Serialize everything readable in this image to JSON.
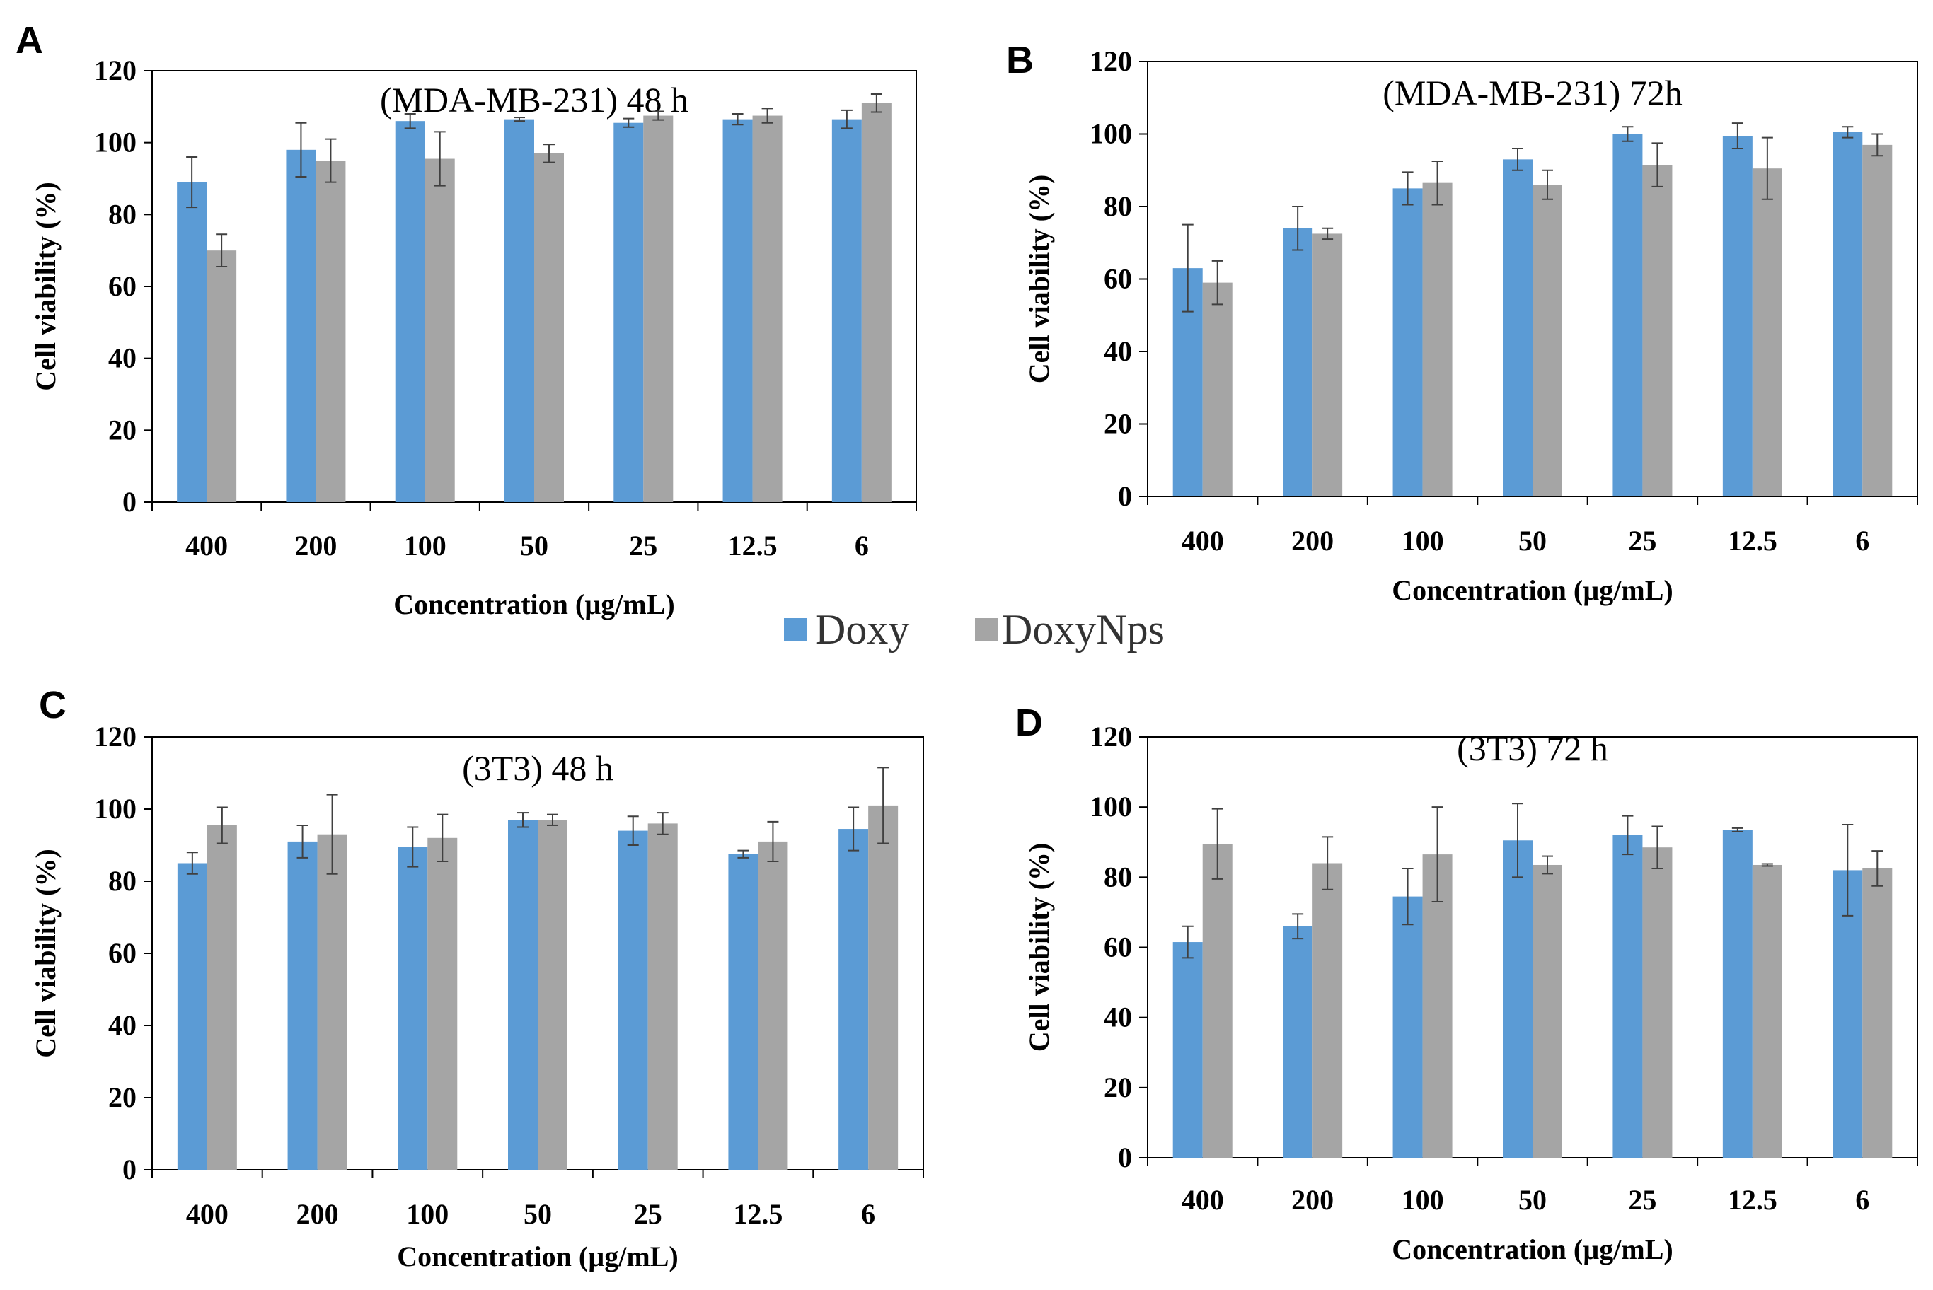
{
  "legend": {
    "series1": "Doxy",
    "series2": "DoxyNps"
  },
  "colors": {
    "doxy": "#5b9bd5",
    "doxynps": "#a5a5a5",
    "axis": "#000000",
    "errorbar": "#404040"
  },
  "chart_data": [
    {
      "panel": "A",
      "type": "bar",
      "title": "(MDA-MB-231) 48 h",
      "xlabel": "Concentration (µg/mL)",
      "ylabel": "Cell viability (%)",
      "ylim": [
        0,
        120
      ],
      "yticks": [
        "0",
        "20",
        "40",
        "60",
        "80",
        "100",
        "120"
      ],
      "categories": [
        "400",
        "200",
        "100",
        "50",
        "25",
        "12.5",
        "6"
      ],
      "series": [
        {
          "name": "Doxy",
          "values": [
            89,
            98,
            106,
            106.5,
            105.5,
            106.5,
            106.5
          ],
          "errors": [
            7,
            7.5,
            2,
            0.5,
            1.2,
            1.5,
            2.5
          ]
        },
        {
          "name": "DoxyNps",
          "values": [
            70,
            95,
            95.5,
            97,
            107.5,
            107.5,
            111
          ],
          "errors": [
            4.5,
            6,
            7.5,
            2.5,
            1.2,
            2,
            2.5
          ]
        }
      ]
    },
    {
      "panel": "B",
      "type": "bar",
      "title": "(MDA-MB-231) 72h",
      "xlabel": "Concentration (µg/mL)",
      "ylabel": "Cell viability (%)",
      "ylim": [
        0,
        120
      ],
      "yticks": [
        "0",
        "20",
        "40",
        "60",
        "80",
        "100",
        "120"
      ],
      "categories": [
        "400",
        "200",
        "100",
        "50",
        "25",
        "12.5",
        "6"
      ],
      "series": [
        {
          "name": "Doxy",
          "values": [
            63,
            74,
            85,
            93,
            100,
            99.5,
            100.5
          ],
          "errors": [
            12,
            6,
            4.5,
            3,
            2,
            3.5,
            1.5
          ]
        },
        {
          "name": "DoxyNps",
          "values": [
            59,
            72.5,
            86.5,
            86,
            91.5,
            90.5,
            97
          ],
          "errors": [
            6,
            1.5,
            6,
            4,
            6,
            8.5,
            3
          ]
        }
      ]
    },
    {
      "panel": "C",
      "type": "bar",
      "title": "(3T3) 48 h",
      "xlabel": "Concentration (µg/mL)",
      "ylabel": "Cell viability (%)",
      "ylim": [
        0,
        120
      ],
      "yticks": [
        "0",
        "20",
        "40",
        "60",
        "80",
        "100",
        "120"
      ],
      "categories": [
        "400",
        "200",
        "100",
        "50",
        "25",
        "12.5",
        "6"
      ],
      "series": [
        {
          "name": "Doxy",
          "values": [
            85,
            91,
            89.5,
            97,
            94,
            87.5,
            94.5
          ],
          "errors": [
            3,
            4.5,
            5.5,
            2,
            4,
            1,
            6
          ]
        },
        {
          "name": "DoxyNps",
          "values": [
            95.5,
            93,
            92,
            97,
            96,
            91,
            101
          ],
          "errors": [
            5,
            11,
            6.5,
            1.5,
            3,
            5.5,
            10.5
          ]
        }
      ]
    },
    {
      "panel": "D",
      "type": "bar",
      "title": "(3T3) 72 h",
      "xlabel": "Concentration (µg/mL)",
      "ylabel": "Cell viability (%)",
      "ylim": [
        0,
        120
      ],
      "yticks": [
        "0",
        "20",
        "40",
        "60",
        "80",
        "100",
        "120"
      ],
      "categories": [
        "400",
        "200",
        "100",
        "50",
        "25",
        "12.5",
        "6"
      ],
      "series": [
        {
          "name": "Doxy",
          "values": [
            61.5,
            66,
            74.5,
            90.5,
            92,
            93.5,
            82
          ],
          "errors": [
            4.5,
            3.5,
            8,
            10.5,
            5.5,
            0.5,
            13
          ]
        },
        {
          "name": "DoxyNps",
          "values": [
            89.5,
            84,
            86.5,
            83.5,
            88.5,
            83.5,
            82.5
          ],
          "errors": [
            10,
            7.5,
            13.5,
            2.5,
            6,
            0.3,
            5
          ]
        }
      ]
    }
  ]
}
